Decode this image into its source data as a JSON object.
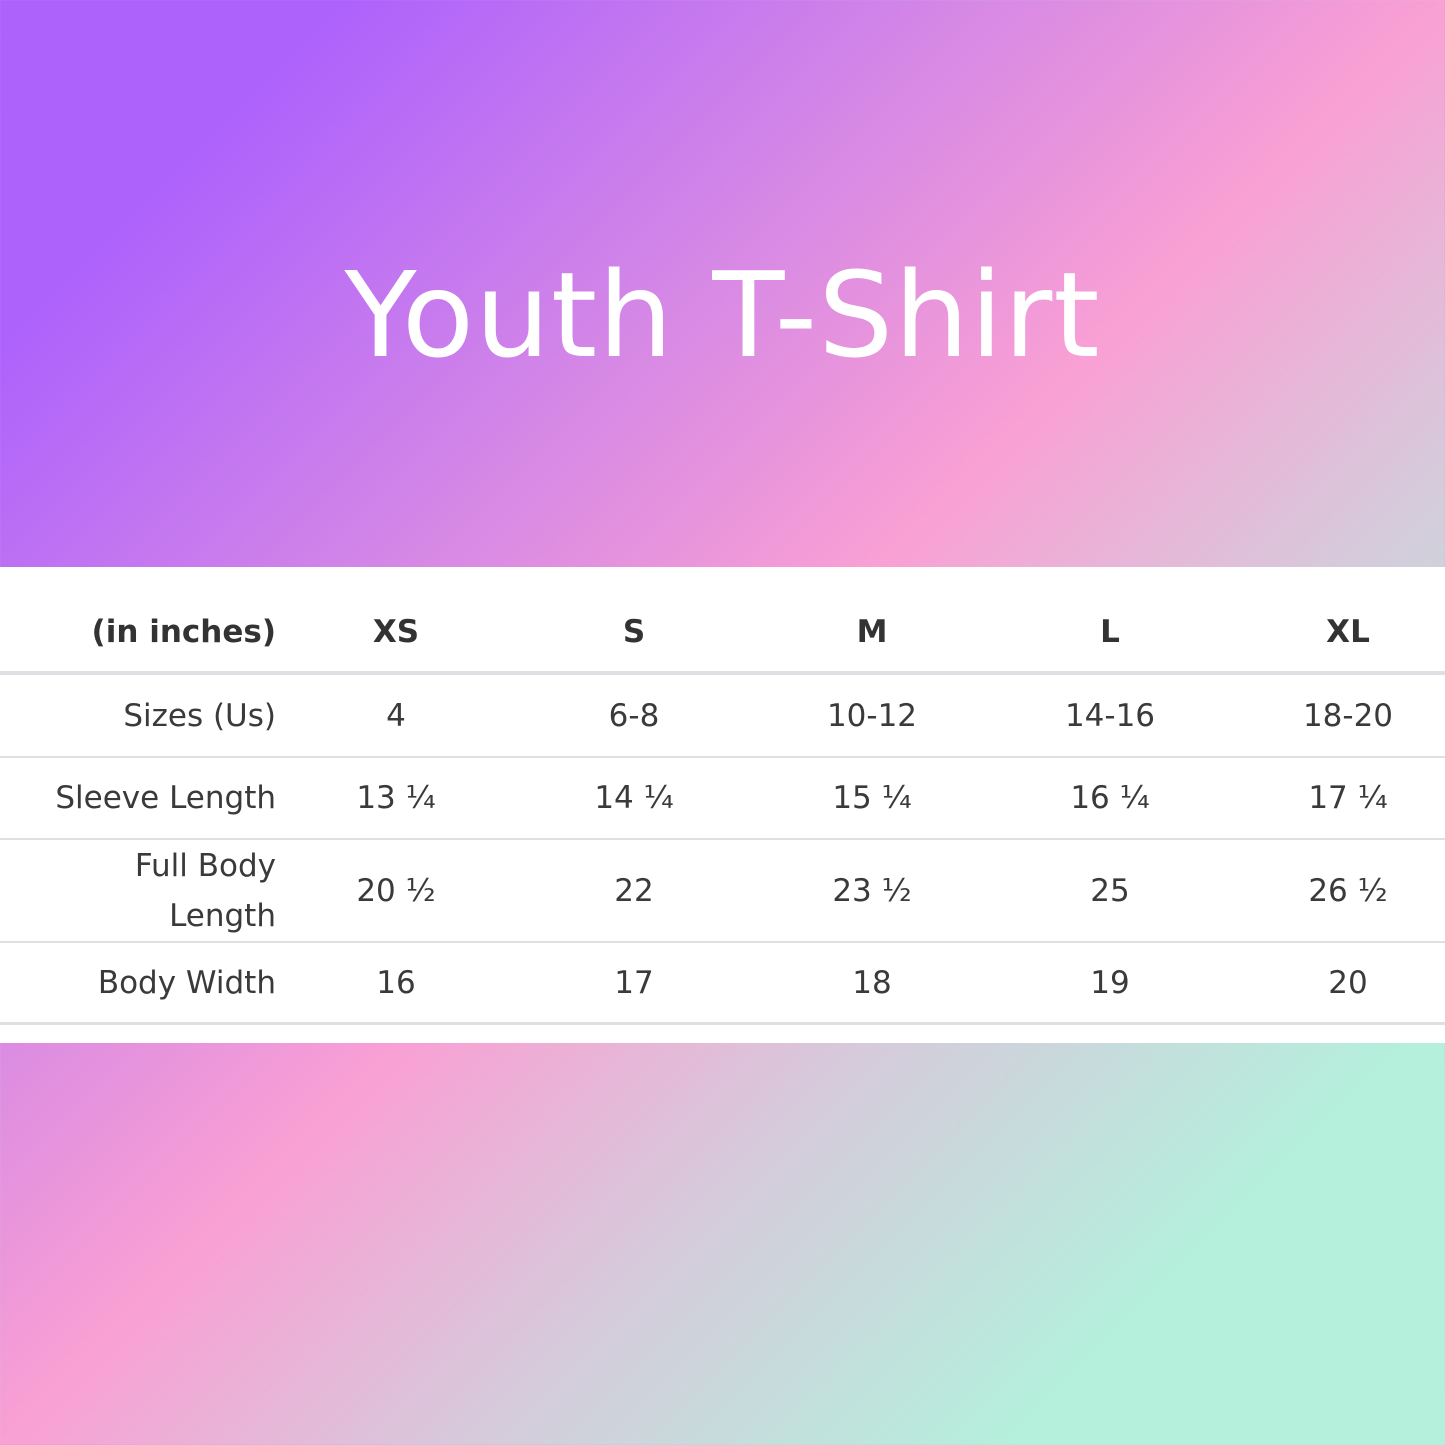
{
  "title": "Youth T-Shirt",
  "colors": {
    "gradient_start": "#ae62fc",
    "gradient_mid": "#f9a0d4",
    "gradient_end": "#b4f0dc",
    "table_bg": "#ffffff",
    "text": "#3a3a3a"
  },
  "table": {
    "header": [
      "(in inches)",
      "XS",
      "S",
      "M",
      "L",
      "XL"
    ],
    "rows": [
      {
        "label": "Sizes (Us)",
        "values": [
          "4",
          "6-8",
          "10-12",
          "14-16",
          "18-20"
        ]
      },
      {
        "label": "Sleeve Length",
        "values": [
          "13 ¼",
          "14 ¼",
          "15 ¼",
          "16 ¼",
          "17 ¼"
        ]
      },
      {
        "label": "Full Body Length",
        "values": [
          "20 ½",
          "22",
          "23 ½",
          "25",
          "26 ½"
        ]
      },
      {
        "label": "Body Width",
        "values": [
          "16",
          "17",
          "18",
          "19",
          "20"
        ]
      }
    ]
  }
}
